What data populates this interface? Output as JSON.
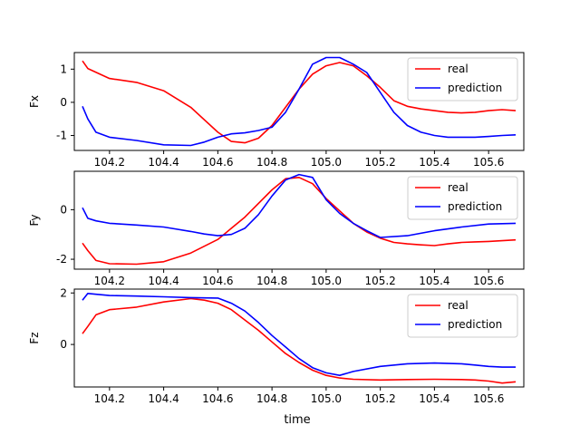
{
  "figure": {
    "xlabel": "time"
  },
  "chart_data": [
    {
      "type": "line",
      "ylabel": "Fx",
      "xlim": [
        104.07,
        105.73
      ],
      "ylim": [
        -1.45,
        1.5
      ],
      "xticks": [
        "104.2",
        "104.4",
        "104.6",
        "104.8",
        "105.0",
        "105.2",
        "105.4",
        "105.6"
      ],
      "yticks": [
        "-1",
        "0",
        "1"
      ],
      "legend": {
        "placement": "upper right",
        "entries": [
          "real",
          "prediction"
        ]
      },
      "series": [
        {
          "name": "real",
          "color": "#ff0000",
          "x": [
            104.1,
            104.12,
            104.2,
            104.3,
            104.4,
            104.5,
            104.6,
            104.65,
            104.7,
            104.75,
            104.8,
            104.85,
            104.9,
            104.95,
            105.0,
            105.05,
            105.1,
            105.15,
            105.2,
            105.25,
            105.3,
            105.35,
            105.4,
            105.45,
            105.5,
            105.55,
            105.6,
            105.65,
            105.7
          ],
          "y": [
            1.25,
            1.02,
            0.72,
            0.6,
            0.35,
            -0.15,
            -0.9,
            -1.18,
            -1.22,
            -1.08,
            -0.7,
            -0.15,
            0.4,
            0.85,
            1.1,
            1.2,
            1.1,
            0.8,
            0.45,
            0.05,
            -0.12,
            -0.2,
            -0.25,
            -0.3,
            -0.32,
            -0.3,
            -0.25,
            -0.22,
            -0.25
          ]
        },
        {
          "name": "prediction",
          "color": "#0000ff",
          "x": [
            104.1,
            104.12,
            104.15,
            104.2,
            104.3,
            104.4,
            104.5,
            104.55,
            104.6,
            104.65,
            104.7,
            104.75,
            104.8,
            104.85,
            104.9,
            104.95,
            105.0,
            105.05,
            105.1,
            105.15,
            105.2,
            105.25,
            105.3,
            105.35,
            105.4,
            105.45,
            105.5,
            105.55,
            105.6,
            105.65,
            105.7
          ],
          "y": [
            -0.12,
            -0.5,
            -0.9,
            -1.05,
            -1.15,
            -1.28,
            -1.3,
            -1.2,
            -1.05,
            -0.95,
            -0.92,
            -0.85,
            -0.75,
            -0.3,
            0.4,
            1.15,
            1.35,
            1.35,
            1.15,
            0.9,
            0.3,
            -0.3,
            -0.7,
            -0.9,
            -1.0,
            -1.05,
            -1.05,
            -1.05,
            -1.03,
            -1.0,
            -0.98
          ]
        }
      ]
    },
    {
      "type": "line",
      "ylabel": "Fy",
      "xlim": [
        104.07,
        105.73
      ],
      "ylim": [
        -2.4,
        1.55
      ],
      "xticks": [
        "104.2",
        "104.4",
        "104.6",
        "104.8",
        "105.0",
        "105.2",
        "105.4",
        "105.6"
      ],
      "yticks": [
        "-2",
        "0"
      ],
      "legend": {
        "placement": "upper right",
        "entries": [
          "real",
          "prediction"
        ]
      },
      "series": [
        {
          "name": "real",
          "color": "#ff0000",
          "x": [
            104.1,
            104.12,
            104.15,
            104.2,
            104.3,
            104.4,
            104.5,
            104.6,
            104.7,
            104.8,
            104.85,
            104.9,
            104.95,
            105.0,
            105.1,
            105.15,
            105.2,
            105.25,
            105.3,
            105.35,
            105.4,
            105.45,
            105.5,
            105.55,
            105.6,
            105.65,
            105.7
          ],
          "y": [
            -1.35,
            -1.65,
            -2.05,
            -2.18,
            -2.2,
            -2.1,
            -1.75,
            -1.2,
            -0.3,
            0.8,
            1.25,
            1.3,
            1.05,
            0.45,
            -0.55,
            -0.9,
            -1.15,
            -1.32,
            -1.38,
            -1.42,
            -1.45,
            -1.38,
            -1.32,
            -1.3,
            -1.28,
            -1.25,
            -1.22
          ]
        },
        {
          "name": "prediction",
          "color": "#0000ff",
          "x": [
            104.1,
            104.12,
            104.15,
            104.2,
            104.3,
            104.4,
            104.5,
            104.55,
            104.6,
            104.65,
            104.7,
            104.75,
            104.8,
            104.85,
            104.9,
            104.95,
            105.0,
            105.05,
            105.1,
            105.15,
            105.2,
            105.3,
            105.4,
            105.5,
            105.6,
            105.7
          ],
          "y": [
            0.08,
            -0.35,
            -0.45,
            -0.55,
            -0.62,
            -0.7,
            -0.88,
            -0.98,
            -1.05,
            -1.0,
            -0.75,
            -0.2,
            0.55,
            1.2,
            1.42,
            1.3,
            0.4,
            -0.15,
            -0.55,
            -0.85,
            -1.12,
            -1.05,
            -0.85,
            -0.7,
            -0.58,
            -0.55
          ]
        }
      ]
    },
    {
      "type": "line",
      "ylabel": "Fz",
      "xlim": [
        104.07,
        105.73
      ],
      "ylim": [
        -1.65,
        2.15
      ],
      "xticks": [
        "104.2",
        "104.4",
        "104.6",
        "104.8",
        "105.0",
        "105.2",
        "105.4",
        "105.6"
      ],
      "yticks": [
        "0",
        "2"
      ],
      "xlabel": "time",
      "legend": {
        "placement": "upper right",
        "entries": [
          "real",
          "prediction"
        ]
      },
      "series": [
        {
          "name": "real",
          "color": "#ff0000",
          "x": [
            104.1,
            104.12,
            104.15,
            104.2,
            104.3,
            104.4,
            104.5,
            104.55,
            104.6,
            104.65,
            104.7,
            104.75,
            104.8,
            104.85,
            104.9,
            104.95,
            105.0,
            105.05,
            105.1,
            105.2,
            105.3,
            105.4,
            105.5,
            105.55,
            105.6,
            105.65,
            105.7
          ],
          "y": [
            0.42,
            0.7,
            1.15,
            1.35,
            1.45,
            1.65,
            1.78,
            1.72,
            1.6,
            1.35,
            0.95,
            0.55,
            0.1,
            -0.35,
            -0.7,
            -1.0,
            -1.2,
            -1.3,
            -1.35,
            -1.38,
            -1.36,
            -1.35,
            -1.36,
            -1.38,
            -1.42,
            -1.5,
            -1.45
          ]
        },
        {
          "name": "prediction",
          "color": "#0000ff",
          "x": [
            104.1,
            104.12,
            104.15,
            104.2,
            104.3,
            104.4,
            104.5,
            104.6,
            104.65,
            104.7,
            104.75,
            104.8,
            104.85,
            104.9,
            104.95,
            105.0,
            105.05,
            105.1,
            105.2,
            105.3,
            105.4,
            105.5,
            105.55,
            105.6,
            105.65,
            105.7
          ],
          "y": [
            1.72,
            1.98,
            1.95,
            1.9,
            1.88,
            1.85,
            1.82,
            1.8,
            1.6,
            1.3,
            0.85,
            0.35,
            -0.1,
            -0.55,
            -0.9,
            -1.1,
            -1.2,
            -1.05,
            -0.85,
            -0.75,
            -0.72,
            -0.75,
            -0.8,
            -0.85,
            -0.88,
            -0.88
          ]
        }
      ]
    }
  ]
}
